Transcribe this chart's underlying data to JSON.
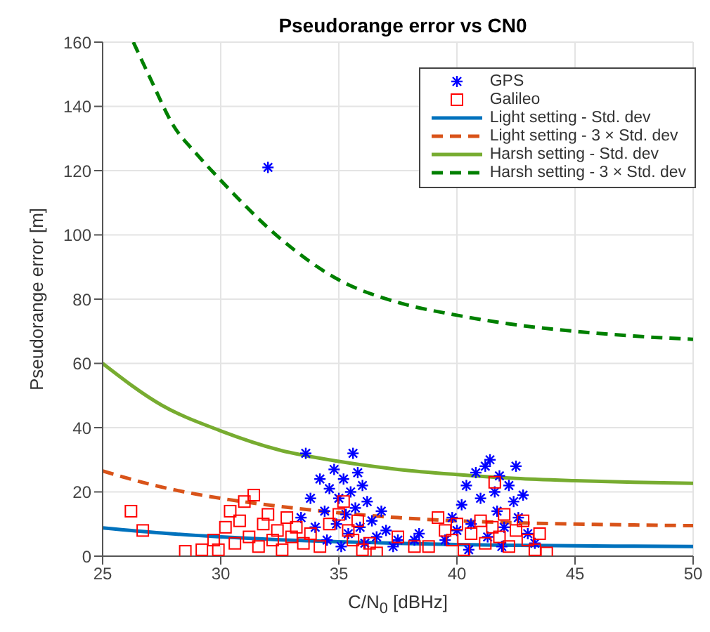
{
  "chart_data": {
    "type": "scatter",
    "title": "Pseudorange error vs CN0",
    "xlabel": "C/N$_{0}$ [dBHz]",
    "ylabel": "Pseudorange error [m]",
    "xlim": [
      25,
      50
    ],
    "xticks": [
      25,
      30,
      35,
      40,
      45,
      50
    ],
    "ylim": [
      0,
      160
    ],
    "yticks": [
      0,
      20,
      40,
      60,
      80,
      100,
      120,
      140,
      160
    ],
    "grid": true,
    "legend": "top right",
    "series": [
      {
        "name": "GPS",
        "marker": "cross",
        "color": "#0000ff",
        "x": [
          32,
          33.4,
          33.6,
          33.8,
          34,
          34.2,
          34.4,
          34.5,
          34.6,
          34.8,
          34.9,
          35,
          35.1,
          35.2,
          35.3,
          35.4,
          35.5,
          35.6,
          35.7,
          35.8,
          35.9,
          36,
          36.1,
          36.2,
          36.4,
          36.6,
          36.8,
          37,
          37.3,
          37.5,
          38.2,
          38.4,
          39.5,
          39.8,
          40,
          40.2,
          40.4,
          40.6,
          40.8,
          41,
          41.2,
          41.3,
          41.4,
          41.6,
          41.7,
          41.8,
          42,
          42.2,
          42.4,
          42.6,
          42.8,
          43,
          42.5,
          41.9,
          40.5,
          43.3
        ],
        "values": [
          121,
          12,
          32,
          18,
          9,
          24,
          14,
          5,
          21,
          27,
          10,
          18,
          3,
          24,
          13,
          7,
          20,
          32,
          15,
          26,
          9,
          22,
          4,
          17,
          11,
          6,
          14,
          8,
          3,
          5,
          5,
          7,
          5,
          12,
          8,
          16,
          22,
          10,
          26,
          18,
          28,
          6,
          30,
          20,
          14,
          25,
          9,
          22,
          17,
          12,
          19,
          7,
          28,
          3,
          2,
          4
        ]
      },
      {
        "name": "Galileo",
        "marker": "square",
        "color": "#ff0000",
        "x": [
          26.2,
          26.7,
          28.5,
          29.2,
          29.7,
          29.9,
          30.2,
          30.4,
          30.6,
          30.8,
          31,
          31.2,
          31.4,
          31.6,
          31.8,
          32,
          32.2,
          32.4,
          32.6,
          32.8,
          33,
          33.2,
          33.5,
          33.8,
          34.2,
          34.6,
          35,
          35.2,
          35.4,
          35.6,
          35.8,
          36,
          36.3,
          36.6,
          37.5,
          38.2,
          38.8,
          39.2,
          39.5,
          39.8,
          40,
          40.3,
          40.6,
          41,
          41.2,
          41.5,
          41.6,
          41.8,
          42,
          42.2,
          42.5,
          42.8,
          43,
          43.3,
          43.5,
          43.8
        ],
        "values": [
          14,
          8,
          1.5,
          2,
          5,
          2,
          9,
          14,
          4,
          11,
          17,
          6,
          19,
          3,
          10,
          13,
          5,
          8,
          2,
          12,
          6,
          9,
          4,
          7,
          3,
          10,
          13,
          17,
          8,
          5,
          11,
          2,
          4,
          1,
          6,
          3,
          3,
          12,
          8,
          5,
          10,
          2,
          7,
          11,
          4,
          9,
          23,
          6,
          13,
          3,
          8,
          11,
          5,
          2,
          7,
          1
        ]
      },
      {
        "name": "Light setting - Std. dev",
        "type": "line",
        "line_style": "solid",
        "color": "#0072bd",
        "x": [
          25,
          27.5,
          30,
          32.5,
          35,
          37.5,
          40,
          42.5,
          45,
          47.5,
          50
        ],
        "values": [
          8.8,
          7.2,
          6,
          5.1,
          4.5,
          4,
          3.6,
          3.4,
          3.2,
          3.1,
          3
        ]
      },
      {
        "name": "Light setting - 3 × Std. dev",
        "type": "line",
        "line_style": "dashed",
        "color": "#d95319",
        "x": [
          25,
          27.5,
          30,
          32.5,
          35,
          37.5,
          40,
          42.5,
          45,
          47.5,
          50
        ],
        "values": [
          26.5,
          21.5,
          18,
          15.5,
          13.5,
          12,
          11,
          10.4,
          10,
          9.7,
          9.5
        ]
      },
      {
        "name": "Harsh setting - Std. dev",
        "type": "line",
        "line_style": "solid",
        "color": "#77ac30",
        "x": [
          25,
          27.5,
          30,
          32.5,
          35,
          37.5,
          40,
          42.5,
          45,
          47.5,
          50
        ],
        "values": [
          60,
          47,
          39,
          33,
          29.5,
          27,
          25.4,
          24.2,
          23.5,
          23,
          22.7
        ]
      },
      {
        "name": "Harsh setting - 3 × Std. dev",
        "type": "line",
        "line_style": "dashed",
        "color": "#008000",
        "x": [
          26.3,
          27,
          28,
          29,
          30,
          32.5,
          35,
          37.5,
          40,
          42.5,
          45,
          47.5,
          50
        ],
        "values": [
          160,
          149,
          134,
          125,
          117,
          99,
          86,
          79,
          75,
          72,
          70,
          68.5,
          67.5
        ]
      }
    ]
  }
}
